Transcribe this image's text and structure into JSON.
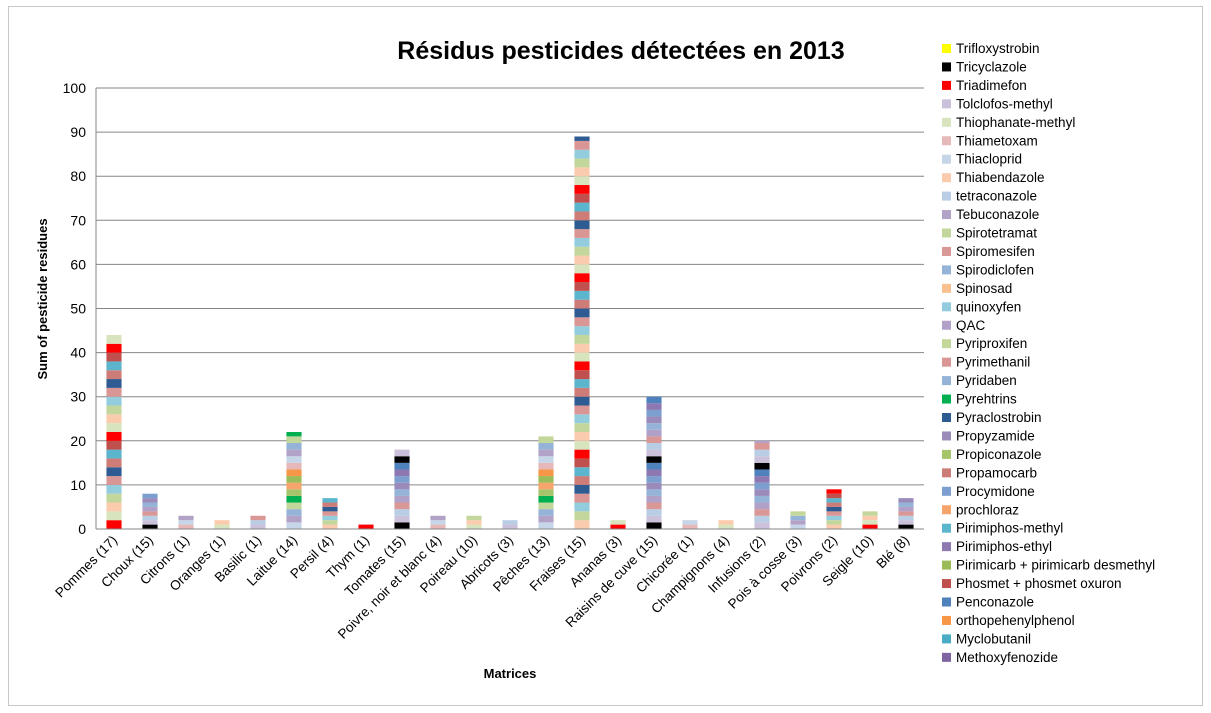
{
  "chart_data": {
    "type": "bar",
    "stacked": true,
    "title": "Résidus pesticides détectées en 2013",
    "xlabel": "Matrices",
    "ylabel": "Sum of pesticide residues",
    "ylim": [
      0,
      100
    ],
    "yticks": [
      0,
      10,
      20,
      30,
      40,
      50,
      60,
      70,
      80,
      90,
      100
    ],
    "grid": true,
    "legend_position": "right",
    "categories": [
      "Pommes (17)",
      "Choux (15)",
      "Citrons (1)",
      "Oranges (1)",
      "Basilic (1)",
      "Laitue (14)",
      "Persil (4)",
      "Thym (1)",
      "Tomates (15)",
      "Poivre, noir et blanc (4)",
      "Poireau (10)",
      "Abricots (3)",
      "Pêches (13)",
      "Fraises (15)",
      "Ananas (3)",
      "Raisins de cuve (15)",
      "Chicorée (1)",
      "Champignons (4)",
      "Infusions (2)",
      "Pois à cosse (3)",
      "Poivrons (2)",
      "Seigle (10)",
      "Blé (8)"
    ],
    "totals": [
      44,
      8,
      3,
      2,
      3,
      22,
      7,
      1,
      18,
      3,
      3,
      2,
      21,
      89,
      2,
      30,
      2,
      2,
      20,
      4,
      9,
      4,
      7
    ],
    "legend": [
      {
        "name": "Trifloxystrobin",
        "color": "#ffff00"
      },
      {
        "name": "Tricyclazole",
        "color": "#000000"
      },
      {
        "name": "Triadimefon",
        "color": "#ff0000"
      },
      {
        "name": "Tolclofos-methyl",
        "color": "#ccc1da"
      },
      {
        "name": "Thiophanate-methyl",
        "color": "#d7e4bd"
      },
      {
        "name": "Thiametoxam",
        "color": "#e6b9b8"
      },
      {
        "name": "Thiacloprid",
        "color": "#c6d5e8"
      },
      {
        "name": "Thiabendazole",
        "color": "#fbcbae"
      },
      {
        "name": "tetraconazole",
        "color": "#b9cde5"
      },
      {
        "name": "Tebuconazole",
        "color": "#b3a2c7"
      },
      {
        "name": "Spirotetramat",
        "color": "#c3d69b"
      },
      {
        "name": "Spiromesifen",
        "color": "#d99795"
      },
      {
        "name": "Spirodiclofen",
        "color": "#95b3d7"
      },
      {
        "name": "Spinosad",
        "color": "#fac090"
      },
      {
        "name": "quinoxyfen",
        "color": "#93cddd"
      },
      {
        "name": "QAC",
        "color": "#b1a0c7"
      },
      {
        "name": "Pyriproxifen",
        "color": "#c4d79b"
      },
      {
        "name": "Pyrimethanil",
        "color": "#da9694"
      },
      {
        "name": "Pyridaben",
        "color": "#95b3d7"
      },
      {
        "name": "Pyrehtrins",
        "color": "#00b050"
      },
      {
        "name": "Pyraclostrobin",
        "color": "#2e5b91"
      },
      {
        "name": "Propyzamide",
        "color": "#9b8bbb"
      },
      {
        "name": "Propiconazole",
        "color": "#a6c46a"
      },
      {
        "name": "Propamocarb",
        "color": "#cd7c78"
      },
      {
        "name": "Procymidone",
        "color": "#7c9fd0"
      },
      {
        "name": "prochloraz",
        "color": "#f5a46b"
      },
      {
        "name": "Pirimiphos-methyl",
        "color": "#5bb5cc"
      },
      {
        "name": "Pirimiphos-ethyl",
        "color": "#8d78b2"
      },
      {
        "name": "Pirimicarb + pirimicarb desmethyl",
        "color": "#9bbb59"
      },
      {
        "name": "Phosmet + phosmet oxuron",
        "color": "#c0504d"
      },
      {
        "name": "Penconazole",
        "color": "#4f81bd"
      },
      {
        "name": "orthopehenylphenol",
        "color": "#f79646"
      },
      {
        "name": "Myclobutanil",
        "color": "#4bacc6"
      },
      {
        "name": "Methoxyfenozide",
        "color": "#8064a2"
      }
    ]
  }
}
